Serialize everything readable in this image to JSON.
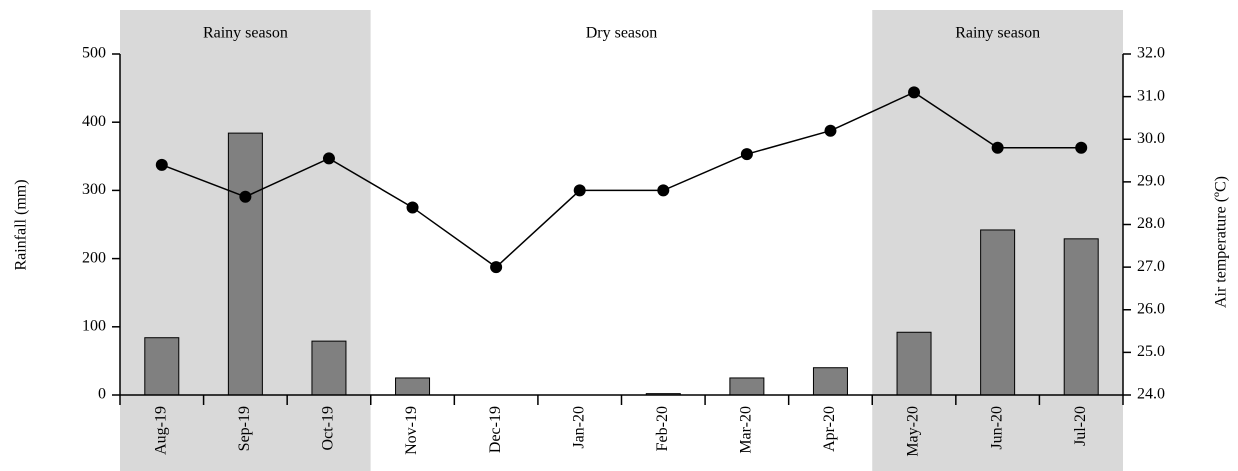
{
  "chart_data": {
    "type": "bar",
    "categories": [
      "Aug-19",
      "Sep-19",
      "Oct-19",
      "Nov-19",
      "Dec-19",
      "Jan-20",
      "Feb-20",
      "Mar-20",
      "Apr-20",
      "May-20",
      "Jun-20",
      "Jul-20"
    ],
    "series": [
      {
        "name": "Rainfall",
        "type": "bar",
        "color": "#808080",
        "values": [
          84,
          384,
          79,
          25,
          0,
          0,
          2,
          25,
          40,
          92,
          242,
          229
        ]
      },
      {
        "name": "Air temperature",
        "type": "line",
        "axis": "y2",
        "color": "#000000",
        "values": [
          29.4,
          28.65,
          29.55,
          28.4,
          27.0,
          28.8,
          28.8,
          29.65,
          30.2,
          31.1,
          29.8,
          29.8
        ]
      }
    ],
    "ylabel": "Rainfall (mm)",
    "y2label": "Air temperature (ºC)",
    "ylim": [
      0,
      500
    ],
    "yticks": [
      0,
      100,
      200,
      300,
      400,
      500
    ],
    "y2lim": [
      24,
      32
    ],
    "y2ticks": [
      {
        "value": 24,
        "label": "24.0"
      },
      {
        "value": 25,
        "label": "25.0"
      },
      {
        "value": 26,
        "label": "26.0"
      },
      {
        "value": 27,
        "label": "27.0"
      },
      {
        "value": 28,
        "label": "28.0"
      },
      {
        "value": 29,
        "label": "29.0"
      },
      {
        "value": 30,
        "label": "30.0"
      },
      {
        "value": 31,
        "label": "31.0"
      },
      {
        "value": 32,
        "label": "32.0"
      }
    ],
    "regions": [
      {
        "label": "Rainy season",
        "start": "Aug-19",
        "end": "Oct-19",
        "color": "#d9d9d9"
      },
      {
        "label": "Dry season",
        "start": "Nov-19",
        "end": "Apr-20",
        "color": "#ffffff"
      },
      {
        "label": "Rainy season",
        "start": "May-20",
        "end": "Jul-20",
        "color": "#d9d9d9"
      }
    ]
  }
}
